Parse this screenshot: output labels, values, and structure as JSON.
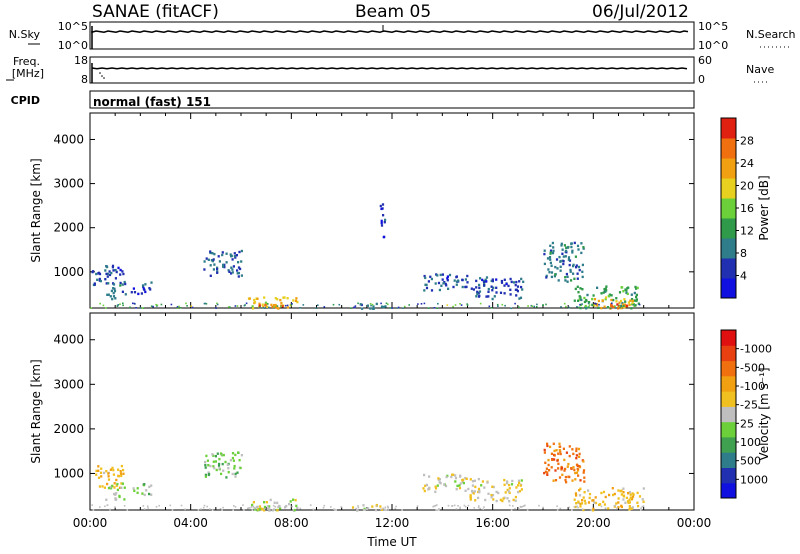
{
  "header": {
    "station": "SANAE (fitACF)",
    "beam": "Beam 05",
    "date": "06/Jul/2012"
  },
  "panels": {
    "nsky": {
      "label": "N.Sky",
      "tick_top": "10^5",
      "tick_bottom": "10^0",
      "right_top": "10^5",
      "right_bottom": "10^0",
      "right_label": "N.Search"
    },
    "freq": {
      "label_line1": "Freq.",
      "label_line2": "[MHz]",
      "tick_top": "18",
      "tick_bottom": "8",
      "right_top": "60",
      "right_bottom": "0",
      "right_label": "Nave"
    },
    "cpid": {
      "label": "CPID",
      "value": "normal (fast) 151"
    }
  },
  "colors": {
    "power": [
      "#1010e0",
      "#2030b0",
      "#2f7c8a",
      "#2e9a4a",
      "#6bd03a",
      "#e8d020",
      "#f0a010",
      "#f07010",
      "#e02010"
    ],
    "velocity": [
      "#1010e0",
      "#2030b0",
      "#2f7c8a",
      "#3fa050",
      "#6bd03a",
      "#bfbfbf",
      "#f0c020",
      "#f0a010",
      "#f07010",
      "#e84010",
      "#e01010"
    ]
  },
  "chart_data": [
    {
      "type": "heatmap",
      "name": "power",
      "ylabel": "Slant Range [km]",
      "yticks": [
        1000,
        2000,
        3000,
        4000
      ],
      "ylim": [
        180,
        4600
      ],
      "xlim": [
        0,
        24
      ],
      "colorbar": {
        "label": "Power [dB]",
        "ticks": [
          "4",
          "8",
          "12",
          "16",
          "20",
          "24",
          "28"
        ],
        "range": [
          0,
          32
        ]
      },
      "patches": [
        {
          "t": [
            0.05,
            1.3
          ],
          "r": [
            700,
            1200
          ],
          "v": 6
        },
        {
          "t": [
            0.6,
            1.4
          ],
          "r": [
            400,
            800
          ],
          "v": 8
        },
        {
          "t": [
            1.6,
            2.4
          ],
          "r": [
            500,
            800
          ],
          "v": 6
        },
        {
          "t": [
            4.5,
            6.0
          ],
          "r": [
            900,
            1500
          ],
          "v": 7
        },
        {
          "t": [
            6.2,
            8.2
          ],
          "r": [
            190,
            450
          ],
          "v": 20
        },
        {
          "t": [
            6.6,
            7.8
          ],
          "r": [
            190,
            280
          ],
          "v": 26
        },
        {
          "t": [
            10.4,
            11.8
          ],
          "r": [
            190,
            300
          ],
          "v": 8
        },
        {
          "t": [
            11.5,
            11.7
          ],
          "r": [
            1700,
            2600
          ],
          "v": 5
        },
        {
          "t": [
            13.2,
            15.0
          ],
          "r": [
            600,
            1000
          ],
          "v": 6
        },
        {
          "t": [
            15.0,
            17.2
          ],
          "r": [
            400,
            900
          ],
          "v": 6
        },
        {
          "t": [
            18.0,
            19.6
          ],
          "r": [
            800,
            1700
          ],
          "v": 9
        },
        {
          "t": [
            19.2,
            21.8
          ],
          "r": [
            200,
            700
          ],
          "v": 13
        },
        {
          "t": [
            19.8,
            21.6
          ],
          "r": [
            190,
            450
          ],
          "v": 22
        },
        {
          "t": [
            20.6,
            21.4
          ],
          "r": [
            190,
            300
          ],
          "v": 27
        }
      ]
    },
    {
      "type": "heatmap",
      "name": "velocity",
      "ylabel": "Slant Range [km]",
      "xlabel": "Time UT",
      "xticks": [
        "00:00",
        "04:00",
        "08:00",
        "12:00",
        "16:00",
        "20:00",
        "00:00"
      ],
      "yticks": [
        1000,
        2000,
        3000,
        4000
      ],
      "ylim": [
        180,
        4600
      ],
      "xlim": [
        0,
        24
      ],
      "colorbar": {
        "label": "Velocity [m s⁻¹]",
        "ticks": [
          "1000",
          "500",
          "100",
          "25",
          "-25",
          "-100",
          "-500",
          "-1000"
        ],
        "range": [
          1200,
          -1200
        ]
      },
      "patches": [
        {
          "t": [
            0.05,
            1.3
          ],
          "r": [
            700,
            1200
          ],
          "v": -300
        },
        {
          "t": [
            0.6,
            1.4
          ],
          "r": [
            400,
            800
          ],
          "v": 150
        },
        {
          "t": [
            1.6,
            2.4
          ],
          "r": [
            500,
            800
          ],
          "v": 200
        },
        {
          "t": [
            4.5,
            6.0
          ],
          "r": [
            900,
            1500
          ],
          "v": 220
        },
        {
          "t": [
            6.2,
            8.2
          ],
          "r": [
            190,
            450
          ],
          "v": 60
        },
        {
          "t": [
            6.6,
            7.8
          ],
          "r": [
            190,
            300
          ],
          "v": -60
        },
        {
          "t": [
            10.4,
            11.8
          ],
          "r": [
            190,
            320
          ],
          "v": -80
        },
        {
          "t": [
            13.2,
            15.0
          ],
          "r": [
            600,
            1000
          ],
          "v": 10
        },
        {
          "t": [
            15.0,
            17.2
          ],
          "r": [
            400,
            900
          ],
          "v": -80
        },
        {
          "t": [
            18.0,
            19.6
          ],
          "r": [
            800,
            1700
          ],
          "v": -600
        },
        {
          "t": [
            19.2,
            22.0
          ],
          "r": [
            190,
            700
          ],
          "v": -250
        }
      ]
    }
  ]
}
